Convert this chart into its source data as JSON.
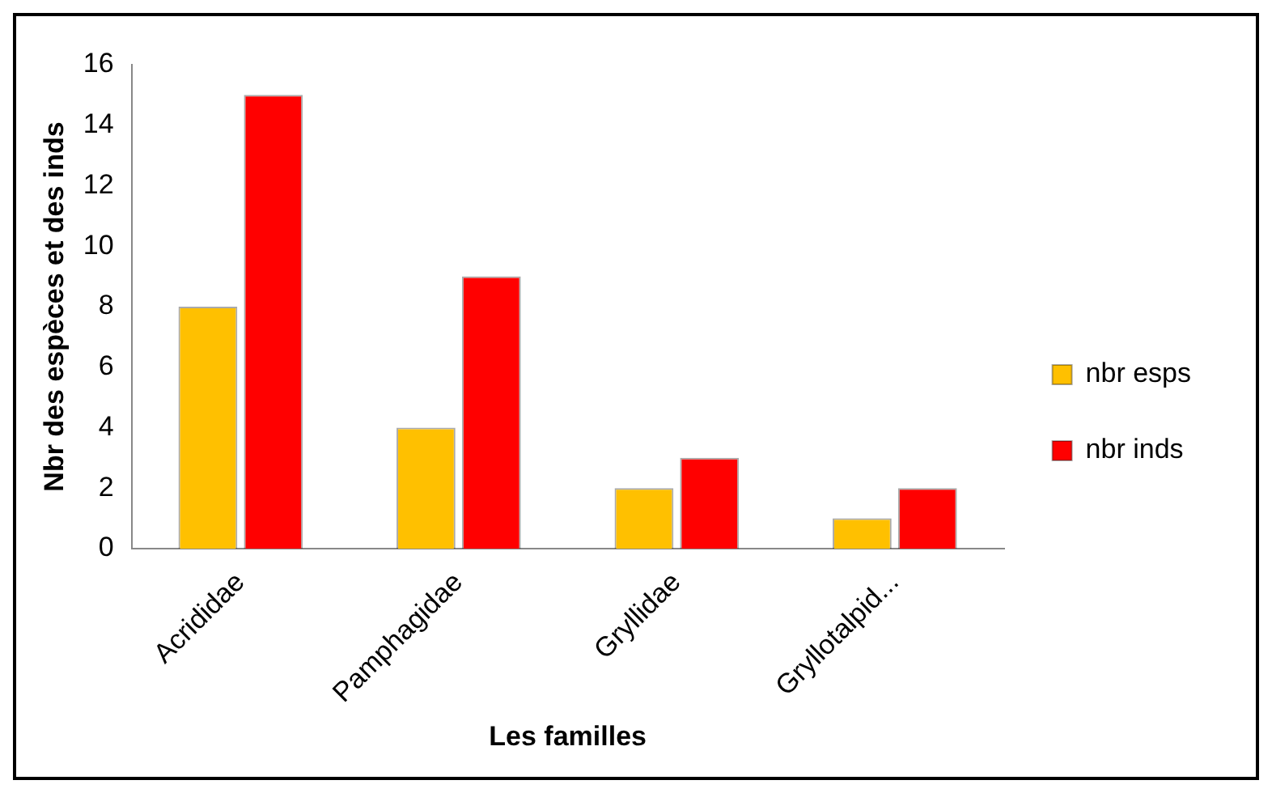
{
  "chart_data": {
    "type": "bar",
    "xlabel": "Les familles",
    "ylabel": "Nbr des espèces et des inds",
    "categories": [
      "Acrididae",
      "Pamphagidae",
      "Gryllidae",
      "Gryllotalpid..."
    ],
    "series": [
      {
        "name": "nbr esps",
        "color": "#ffc000",
        "values": [
          8,
          4,
          2,
          1
        ]
      },
      {
        "name": "nbr inds",
        "color": "#ff0000",
        "values": [
          15,
          9,
          3,
          2
        ]
      }
    ],
    "ylim": [
      0,
      16
    ],
    "yticks": [
      0,
      2,
      4,
      6,
      8,
      10,
      12,
      14,
      16
    ],
    "grid": false,
    "legend": "right"
  }
}
